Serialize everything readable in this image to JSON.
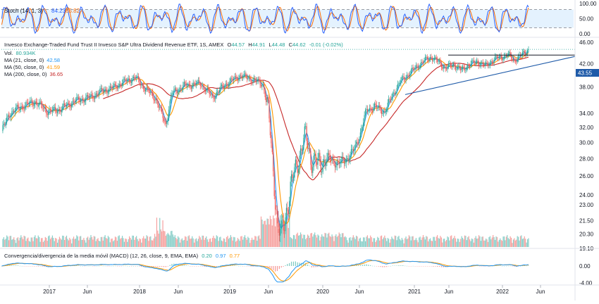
{
  "chart_data": {
    "type": "candlestick",
    "title": "Invesco Exchange-Traded Fund Trust II Invesco S&P Ultra Dividend Revenue ETF, 1S, AMEX",
    "title_parts": {
      "name": "Invesco Exchange-Traded Fund Trust II Invesco S&P Ultra Dividend Revenue ETF, 1S, AMEX",
      "o_label": "O",
      "o_value": "44.57",
      "h_label": "H",
      "h_value": "44.91",
      "l_label": "L",
      "l_value": "44.48",
      "c_label": "C",
      "c_value": "44.62",
      "change": "-0.01 (-0.02%)"
    },
    "legend": [
      {
        "label": "Vol.",
        "value": "80.934K",
        "color": "#26a69a"
      },
      {
        "label": "MA (21, close, 0)",
        "value": "42.58",
        "color": "#2196f3"
      },
      {
        "label": "MA (50, close, 0)",
        "value": "41.59",
        "color": "#ff9800"
      },
      {
        "label": "MA (200, close, 0)",
        "value": "36.65",
        "color": "#c62828"
      }
    ],
    "price_axis": {
      "ticks": [
        "46.00",
        "42.00",
        "38.00",
        "34.00",
        "32.00",
        "30.00",
        "28.00",
        "26.00",
        "24.00",
        "23.00",
        "21.50",
        "20.30",
        "19.10"
      ],
      "current_price_label": "43.55",
      "scale": "log"
    },
    "time_axis": {
      "ticks": [
        "2017",
        "Jun",
        "2018",
        "Jun",
        "2019",
        "Jun",
        "2020",
        "Jun",
        "2021",
        "Jun",
        "2022",
        "Jun"
      ]
    },
    "stoch": {
      "label": "Stoch (14, 1, 3)",
      "k_value": "84.23",
      "d_value": "85.82",
      "ticks": [
        "100.00",
        "50.00",
        "0.00"
      ],
      "band": [
        20,
        80
      ]
    },
    "macd": {
      "label": "Convergencia/divergencia de la media móvil (MACD) (12, 26, close, 9, EMA, EMA)",
      "hist_value": "0.20",
      "macd_value": "0.97",
      "signal_value": "0.77",
      "ticks": [
        "0.00",
        "-4.00"
      ]
    },
    "series_colors": {
      "up": "#26a69a",
      "down": "#ef5350",
      "ma21": "#2196f3",
      "ma50": "#ff9800",
      "ma200": "#c62828",
      "trendline": "#1e5aa8",
      "stoch_k": "#2962ff",
      "stoch_d": "#ff6d00"
    }
  }
}
